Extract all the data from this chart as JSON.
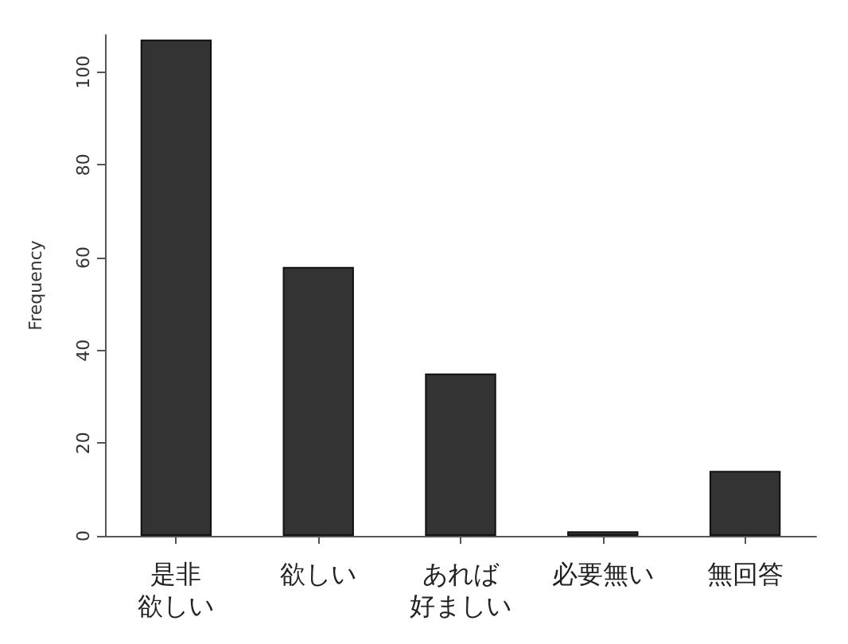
{
  "chart_data": {
    "type": "bar",
    "ylabel": "Frequency",
    "categories": [
      "是非欲しい",
      "欲しい",
      "あれば好ましい",
      "必要無い",
      "無回答"
    ],
    "values": [
      107,
      58,
      35,
      1,
      14
    ],
    "color": "#333333",
    "ylim": [
      0,
      108
    ],
    "yticks": [
      0,
      20,
      40,
      60,
      80,
      100
    ],
    "grid": false
  }
}
